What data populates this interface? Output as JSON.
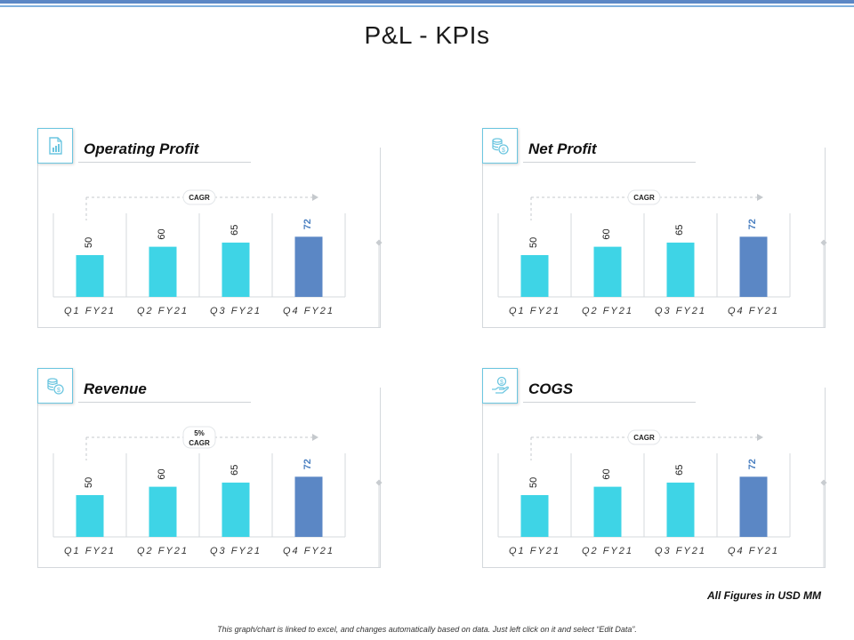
{
  "page": {
    "title": "P&L - KPIs",
    "units_note": "All Figures in USD MM",
    "footer_note": "This graph/chart is linked to excel, and changes automatically based on data. Just left click on it and select “Edit Data”."
  },
  "colors": {
    "bar": "#3ed4e6",
    "bar_highlight": "#5b87c5",
    "highlight_label": "#4a7fc0",
    "accent": "#6cc6e0",
    "grid": "#d4d8dc"
  },
  "chart_data": [
    {
      "type": "bar",
      "title": "Operating Profit",
      "icon": "document-chart-icon",
      "categories": [
        "Q1 FY21",
        "Q2 FY21",
        "Q3 FY21",
        "Q4 FY21"
      ],
      "values": [
        50,
        60,
        65,
        72
      ],
      "highlight_index": 3,
      "cagr_label": [
        "CAGR"
      ],
      "ylim": [
        0,
        100
      ]
    },
    {
      "type": "bar",
      "title": "Net Profit",
      "icon": "coins-icon",
      "categories": [
        "Q1 FY21",
        "Q2 FY21",
        "Q3 FY21",
        "Q4 FY21"
      ],
      "values": [
        50,
        60,
        65,
        72
      ],
      "highlight_index": 3,
      "cagr_label": [
        "CAGR"
      ],
      "ylim": [
        0,
        100
      ]
    },
    {
      "type": "bar",
      "title": "Revenue",
      "icon": "coin-stack-icon",
      "categories": [
        "Q1 FY21",
        "Q2 FY21",
        "Q3 FY21",
        "Q4 FY21"
      ],
      "values": [
        50,
        60,
        65,
        72
      ],
      "highlight_index": 3,
      "cagr_label": [
        "5%",
        "CAGR"
      ],
      "ylim": [
        0,
        100
      ]
    },
    {
      "type": "bar",
      "title": "COGS",
      "icon": "hand-coin-icon",
      "categories": [
        "Q1 FY21",
        "Q2 FY21",
        "Q3 FY21",
        "Q4 FY21"
      ],
      "values": [
        50,
        60,
        65,
        72
      ],
      "highlight_index": 3,
      "cagr_label": [
        "CAGR"
      ],
      "ylim": [
        0,
        100
      ]
    }
  ]
}
